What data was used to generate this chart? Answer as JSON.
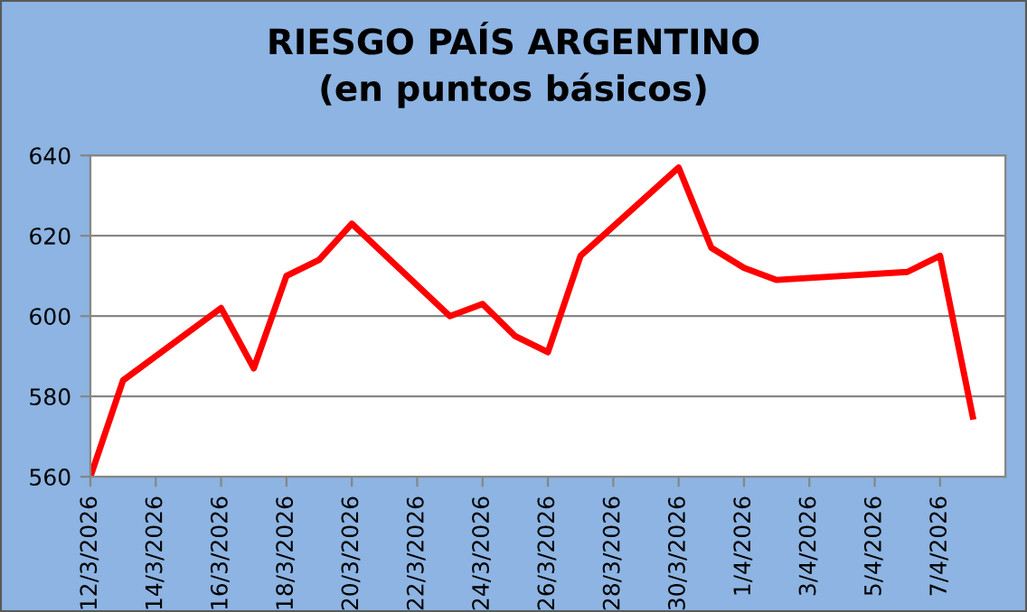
{
  "chart_data": {
    "type": "line",
    "title": "RIESGO PAÍS ARGENTINO\n(en puntos básicos)",
    "x": [
      "2026-03-12",
      "2026-03-13",
      "2026-03-16",
      "2026-03-17",
      "2026-03-18",
      "2026-03-19",
      "2026-03-20",
      "2026-03-23",
      "2026-03-24",
      "2026-03-25",
      "2026-03-26",
      "2026-03-27",
      "2026-03-30",
      "2026-03-31",
      "2026-04-01",
      "2026-04-02",
      "2026-04-06",
      "2026-04-07",
      "2026-04-08"
    ],
    "series": [
      {
        "color": "#ff0000",
        "values": [
          560,
          584,
          602,
          587,
          610,
          614,
          623,
          600,
          603,
          595,
          591,
          615,
          637,
          617,
          612,
          609,
          611,
          615,
          575
        ]
      }
    ],
    "xlim": [
      "2026-03-12",
      "2026-04-09"
    ],
    "xticks": [
      {
        "value": "2026-03-12",
        "label": "12/3/2026"
      },
      {
        "value": "2026-03-14",
        "label": "14/3/2026"
      },
      {
        "value": "2026-03-16",
        "label": "16/3/2026"
      },
      {
        "value": "2026-03-18",
        "label": "18/3/2026"
      },
      {
        "value": "2026-03-20",
        "label": "20/3/2026"
      },
      {
        "value": "2026-03-22",
        "label": "22/3/2026"
      },
      {
        "value": "2026-03-24",
        "label": "24/3/2026"
      },
      {
        "value": "2026-03-26",
        "label": "26/3/2026"
      },
      {
        "value": "2026-03-28",
        "label": "28/3/2026"
      },
      {
        "value": "2026-03-30",
        "label": "30/3/2026"
      },
      {
        "value": "2026-04-01",
        "label": "1/4/2026"
      },
      {
        "value": "2026-04-03",
        "label": "3/4/2026"
      },
      {
        "value": "2026-04-05",
        "label": "5/4/2026"
      },
      {
        "value": "2026-04-07",
        "label": "7/4/2026"
      }
    ],
    "ylim": [
      560,
      640
    ],
    "yticks": [
      560,
      580,
      600,
      620,
      640
    ],
    "grid": "y",
    "legend": false,
    "marker": "none",
    "line_style": "solid"
  }
}
